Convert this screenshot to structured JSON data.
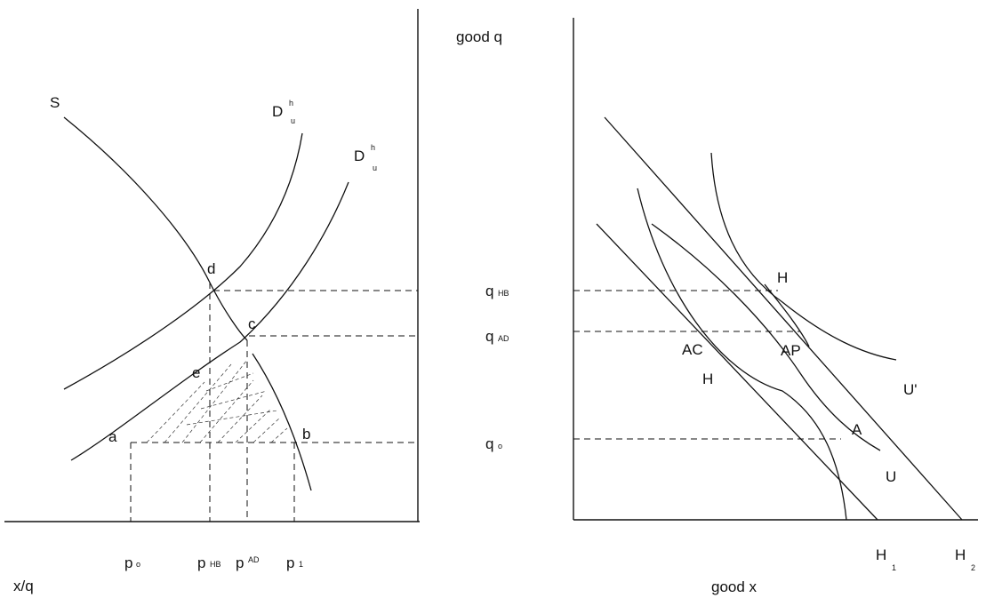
{
  "left_panel": {
    "axis_label": "x/q",
    "curves": {
      "supply": "S",
      "demand_1": {
        "main": "D",
        "sup": "h",
        "sub": "u"
      },
      "demand_2": {
        "main": "D",
        "sup": "h",
        "sub": "u"
      }
    },
    "points": {
      "a": "a",
      "b": "b",
      "c": "c",
      "d": "d",
      "e": "e"
    },
    "price_labels": {
      "p0": {
        "main": "p",
        "sub": "o"
      },
      "phb": {
        "main": "p",
        "sub": "HB"
      },
      "pad": {
        "main": "p",
        "sup": "AD"
      },
      "p1": {
        "main": "p",
        "sub": "1"
      }
    }
  },
  "middle_labels": {
    "vertical_axis": "good q",
    "qhb": {
      "main": "q",
      "sub": "HB"
    },
    "qad": {
      "main": "q",
      "sub": "AD"
    },
    "q0": {
      "main": "q",
      "sub": "o"
    }
  },
  "right_panel": {
    "axis_label": "good x",
    "points": {
      "H": "H",
      "AC": "AC",
      "AP": "AP",
      "A": "A"
    },
    "curve_labels": {
      "h_frontier": "H",
      "u_prime": "U'",
      "u": "U",
      "h1": {
        "main": "H",
        "sub": "1"
      },
      "h2": {
        "main": "H",
        "sub": "2"
      }
    }
  }
}
